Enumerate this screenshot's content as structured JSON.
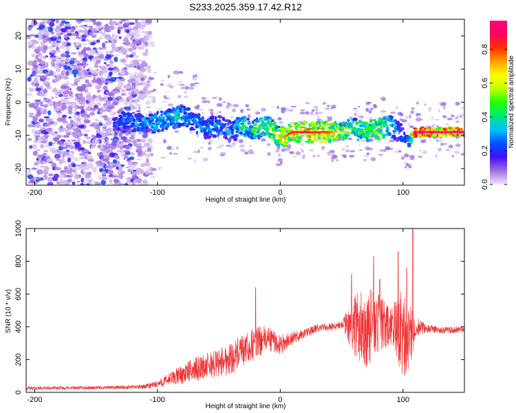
{
  "title": "S233.2025.359.17.42.R12",
  "chart_data": [
    {
      "type": "heatmap",
      "xlabel": "Height of straight line (km)",
      "ylabel": "Frequency (Hz)",
      "xlim": [
        -207,
        150
      ],
      "ylim": [
        -25,
        25
      ],
      "xticks": [
        -200,
        -100,
        0,
        100
      ],
      "yticks": [
        -20,
        -10,
        0,
        10,
        20
      ],
      "colorbar": {
        "label": "Normalized spectral amplitude",
        "range": [
          0,
          0.97
        ],
        "ticks": [
          0.0,
          0.2,
          0.4,
          0.6,
          0.8
        ],
        "tick_labels": [
          "0.0",
          "0.2",
          "0.4",
          "0.6",
          "0.8"
        ],
        "colors": [
          "#f0e6fa",
          "#a070e0",
          "#4010ff",
          "#0050ff",
          "#00c0ff",
          "#00e880",
          "#20ff00",
          "#c0ff00",
          "#ffff00",
          "#ffa000",
          "#ff3000",
          "#ff0060",
          "#ff0080"
        ]
      },
      "ridge": {
        "x": [
          -130,
          -115,
          -100,
          -90,
          -80,
          -70,
          -60,
          -50,
          -40,
          -30,
          -20,
          -10,
          0,
          10,
          20,
          30,
          40,
          50,
          60,
          70,
          80,
          90,
          100,
          105,
          110,
          120,
          130,
          140,
          150
        ],
        "freq": [
          -6,
          -6,
          -6,
          -5,
          -4,
          -6,
          -8,
          -7,
          -9,
          -7,
          -8,
          -7,
          -11,
          -9,
          -9,
          -9,
          -9,
          -9,
          -8,
          -9,
          -8,
          -7,
          -10,
          -12,
          -9,
          -9,
          -9,
          -9,
          -9
        ],
        "amplitude": [
          0.3,
          0.35,
          0.4,
          0.4,
          0.4,
          0.35,
          0.35,
          0.35,
          0.35,
          0.45,
          0.5,
          0.55,
          0.65,
          0.8,
          0.85,
          0.8,
          0.75,
          0.6,
          0.5,
          0.55,
          0.6,
          0.5,
          0.3,
          0.3,
          0.9,
          0.9,
          0.92,
          0.9,
          0.92
        ]
      }
    },
    {
      "type": "line",
      "xlabel": "Height of straight line (km)",
      "ylabel": "SNR (10 * v/v)",
      "xlim": [
        -207,
        150
      ],
      "ylim": [
        0,
        1000
      ],
      "xticks": [
        -200,
        -100,
        0,
        100
      ],
      "yticks": [
        0,
        200,
        400,
        600,
        800,
        1000
      ],
      "series": [
        {
          "name": "SNR",
          "color": "#ee3333",
          "x": [
            -207,
            -150,
            -130,
            -110,
            -100,
            -90,
            -80,
            -70,
            -60,
            -50,
            -40,
            -30,
            -20,
            -10,
            0,
            10,
            20,
            30,
            40,
            50,
            60,
            70,
            80,
            90,
            100,
            105,
            110,
            120,
            130,
            140,
            150
          ],
          "values": [
            25,
            28,
            30,
            35,
            50,
            80,
            110,
            140,
            160,
            180,
            210,
            250,
            300,
            330,
            290,
            330,
            360,
            390,
            400,
            410,
            410,
            400,
            420,
            390,
            380,
            300,
            400,
            390,
            380,
            380,
            385
          ],
          "spread": [
            10,
            10,
            12,
            15,
            25,
            40,
            60,
            70,
            80,
            90,
            100,
            100,
            100,
            80,
            60,
            40,
            30,
            25,
            25,
            25,
            180,
            250,
            180,
            120,
            300,
            250,
            60,
            25,
            20,
            20,
            20
          ],
          "spikes": [
            {
              "x": -20,
              "value": 640
            },
            {
              "x": 58,
              "value": 720
            },
            {
              "x": 76,
              "value": 830
            },
            {
              "x": 81,
              "value": 690
            },
            {
              "x": 96,
              "value": 860
            },
            {
              "x": 103,
              "value": 760
            },
            {
              "x": 108,
              "value": 1000
            }
          ]
        }
      ]
    }
  ]
}
